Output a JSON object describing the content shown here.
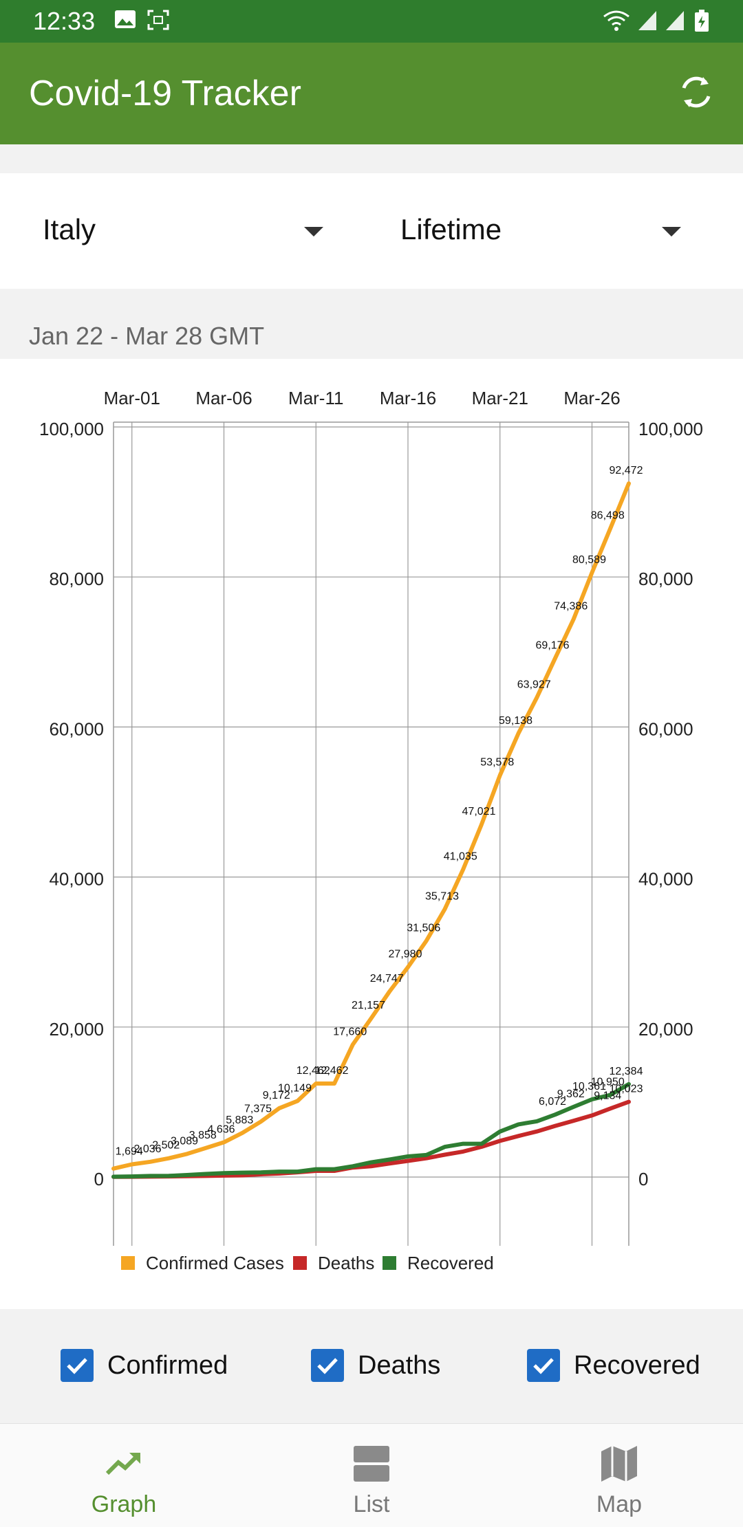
{
  "status_bar": {
    "time": "12:33"
  },
  "app_bar": {
    "title": "Covid-19 Tracker"
  },
  "filters": {
    "country": "Italy",
    "period": "Lifetime"
  },
  "date_range": "Jan 22 - Mar 28 GMT",
  "colors": {
    "confirmed": "#f5a623",
    "deaths": "#c62828",
    "recovered": "#2e7d32",
    "accent": "#558f2f",
    "checkbox": "#1f6cc5"
  },
  "chart_data": {
    "type": "line",
    "x_tick_labels": [
      "Mar-01",
      "Mar-06",
      "Mar-11",
      "Mar-16",
      "Mar-21",
      "Mar-26"
    ],
    "x": [
      "Feb-29",
      "Mar-01",
      "Mar-02",
      "Mar-03",
      "Mar-04",
      "Mar-05",
      "Mar-06",
      "Mar-07",
      "Mar-08",
      "Mar-09",
      "Mar-10",
      "Mar-11",
      "Mar-12",
      "Mar-13",
      "Mar-14",
      "Mar-15",
      "Mar-16",
      "Mar-17",
      "Mar-18",
      "Mar-19",
      "Mar-20",
      "Mar-21",
      "Mar-22",
      "Mar-23",
      "Mar-24",
      "Mar-25",
      "Mar-26",
      "Mar-27",
      "Mar-28"
    ],
    "y_tick_labels": [
      "100,000",
      "80,000",
      "60,000",
      "40,000",
      "20,000",
      "0"
    ],
    "ylim": [
      -9500,
      100000
    ],
    "series": [
      {
        "name": "Confirmed Cases",
        "color": "#f5a623",
        "values": [
          1128,
          1694,
          2036,
          2502,
          3089,
          3858,
          4636,
          5883,
          7375,
          9172,
          10149,
          12462,
          12462,
          17660,
          21157,
          24747,
          27980,
          31506,
          35713,
          41035,
          47021,
          53578,
          59138,
          63927,
          69176,
          74386,
          80589,
          86498,
          92472
        ]
      },
      {
        "name": "Deaths",
        "color": "#c62828",
        "values": [
          29,
          34,
          52,
          79,
          107,
          148,
          197,
          233,
          366,
          463,
          631,
          827,
          827,
          1266,
          1441,
          1809,
          2158,
          2503,
          2978,
          3405,
          4032,
          4825,
          5476,
          6077,
          6820,
          7503,
          8215,
          9134,
          10023
        ]
      },
      {
        "name": "Recovered",
        "color": "#2e7d32",
        "values": [
          46,
          83,
          149,
          160,
          276,
          414,
          523,
          589,
          622,
          724,
          724,
          1045,
          1045,
          1439,
          1966,
          2335,
          2749,
          2941,
          4025,
          4440,
          4440,
          6072,
          7024,
          7432,
          8326,
          9362,
          10361,
          10950,
          12384
        ]
      }
    ],
    "data_labels": {
      "Confirmed Cases": [
        "1,694",
        "2,036",
        "2,502",
        "3,089",
        "3,858",
        "4,636",
        "5,883",
        "7,375",
        "9,172",
        "10,149",
        "12,462",
        "12,462",
        "17,660",
        "21,157",
        "24,747",
        "27,980",
        "31,506",
        "35,713",
        "41,035",
        "47,021",
        "53,578",
        "59,138",
        "63,927",
        "69,176",
        "74,386",
        "80,589",
        "86,498",
        "92,472"
      ],
      "Deaths": [
        "9,134",
        "10,023"
      ],
      "Recovered": [
        "6,072",
        "9,362",
        "10,361",
        "10,950",
        "12,384"
      ]
    },
    "legend": [
      "Confirmed Cases",
      "Deaths",
      "Recovered"
    ],
    "legend_position": "bottom",
    "grid": true
  },
  "checkboxes": [
    {
      "label": "Confirmed",
      "checked": true
    },
    {
      "label": "Deaths",
      "checked": true
    },
    {
      "label": "Recovered",
      "checked": true
    }
  ],
  "bottom_nav": [
    {
      "label": "Graph",
      "icon": "trending-up-icon",
      "active": true
    },
    {
      "label": "List",
      "icon": "list-icon",
      "active": false
    },
    {
      "label": "Map",
      "icon": "map-icon",
      "active": false
    }
  ]
}
